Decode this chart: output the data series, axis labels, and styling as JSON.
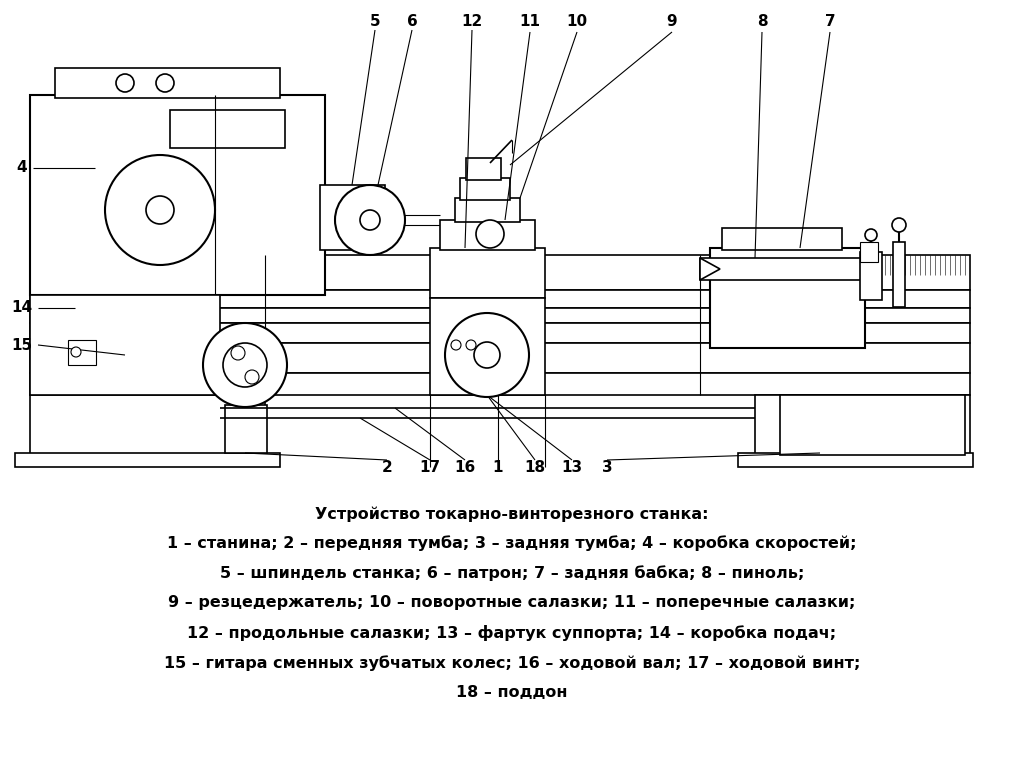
{
  "title": "Устройство токарно-винторезного станка:",
  "caption_lines": [
    "1 – станина; 2 – передняя тумба; 3 – задняя тумба; 4 – коробка скоростей;",
    "5 – шпиндель станка; 6 – патрон; 7 – задняя бабка; 8 – пиноль;",
    "9 – резцедержатель; 10 – поворотные салазки; 11 – поперечные салазки;",
    "12 – продольные салазки; 13 – фартук суппорта; 14 – коробка подач;",
    "15 – гитара сменных зубчатых колес; 16 – ходовой вал; 17 – ходовой винт;",
    "18 – поддон"
  ],
  "bg_color": "#ffffff",
  "line_color": "#000000",
  "font_size_title": 11.5,
  "font_size_caption": 11.5,
  "font_size_label": 11
}
